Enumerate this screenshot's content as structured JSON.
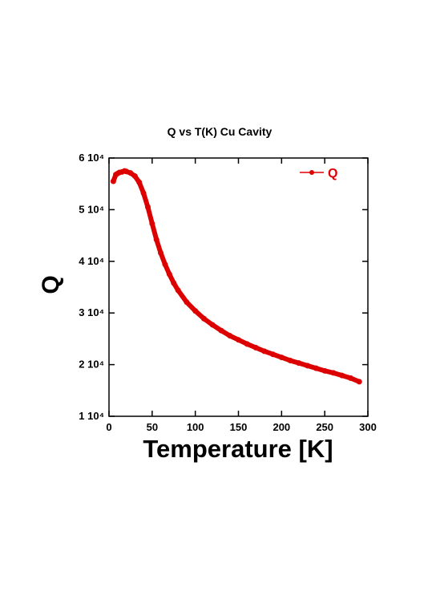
{
  "chart_data": {
    "type": "line",
    "title": "Q vs T(K) Cu Cavity",
    "x_label": "Temperature [K]",
    "y_label": "Q",
    "x": [
      5,
      8,
      10,
      12,
      15,
      18,
      20,
      25,
      30,
      35,
      40,
      45,
      50,
      55,
      60,
      65,
      70,
      75,
      80,
      90,
      100,
      110,
      120,
      130,
      140,
      150,
      160,
      170,
      180,
      190,
      200,
      210,
      220,
      230,
      240,
      250,
      260,
      270,
      280,
      290
    ],
    "series": [
      {
        "name": "Q",
        "color": "#dd0000",
        "values": [
          55500,
          56800,
          57000,
          57200,
          57300,
          57500,
          57400,
          57100,
          56500,
          55300,
          53200,
          50500,
          47300,
          44200,
          41600,
          39400,
          37500,
          35800,
          34400,
          32100,
          30400,
          28900,
          27700,
          26600,
          25600,
          24800,
          24000,
          23300,
          22600,
          22000,
          21400,
          20800,
          20300,
          19800,
          19300,
          18800,
          18400,
          17900,
          17400,
          16700
        ]
      }
    ],
    "xlim": [
      0,
      300
    ],
    "xticks": [
      0,
      50,
      100,
      150,
      200,
      250,
      300
    ],
    "ylim": [
      10000,
      60000
    ],
    "yticks": [
      {
        "value": 10000,
        "label": "1 10⁴"
      },
      {
        "value": 20000,
        "label": "2 10⁴"
      },
      {
        "value": 30000,
        "label": "3 10⁴"
      },
      {
        "value": 40000,
        "label": "4 10⁴"
      },
      {
        "value": 50000,
        "label": "5 10⁴"
      },
      {
        "value": 60000,
        "label": "6 10⁴"
      }
    ],
    "legend": "upper right"
  }
}
